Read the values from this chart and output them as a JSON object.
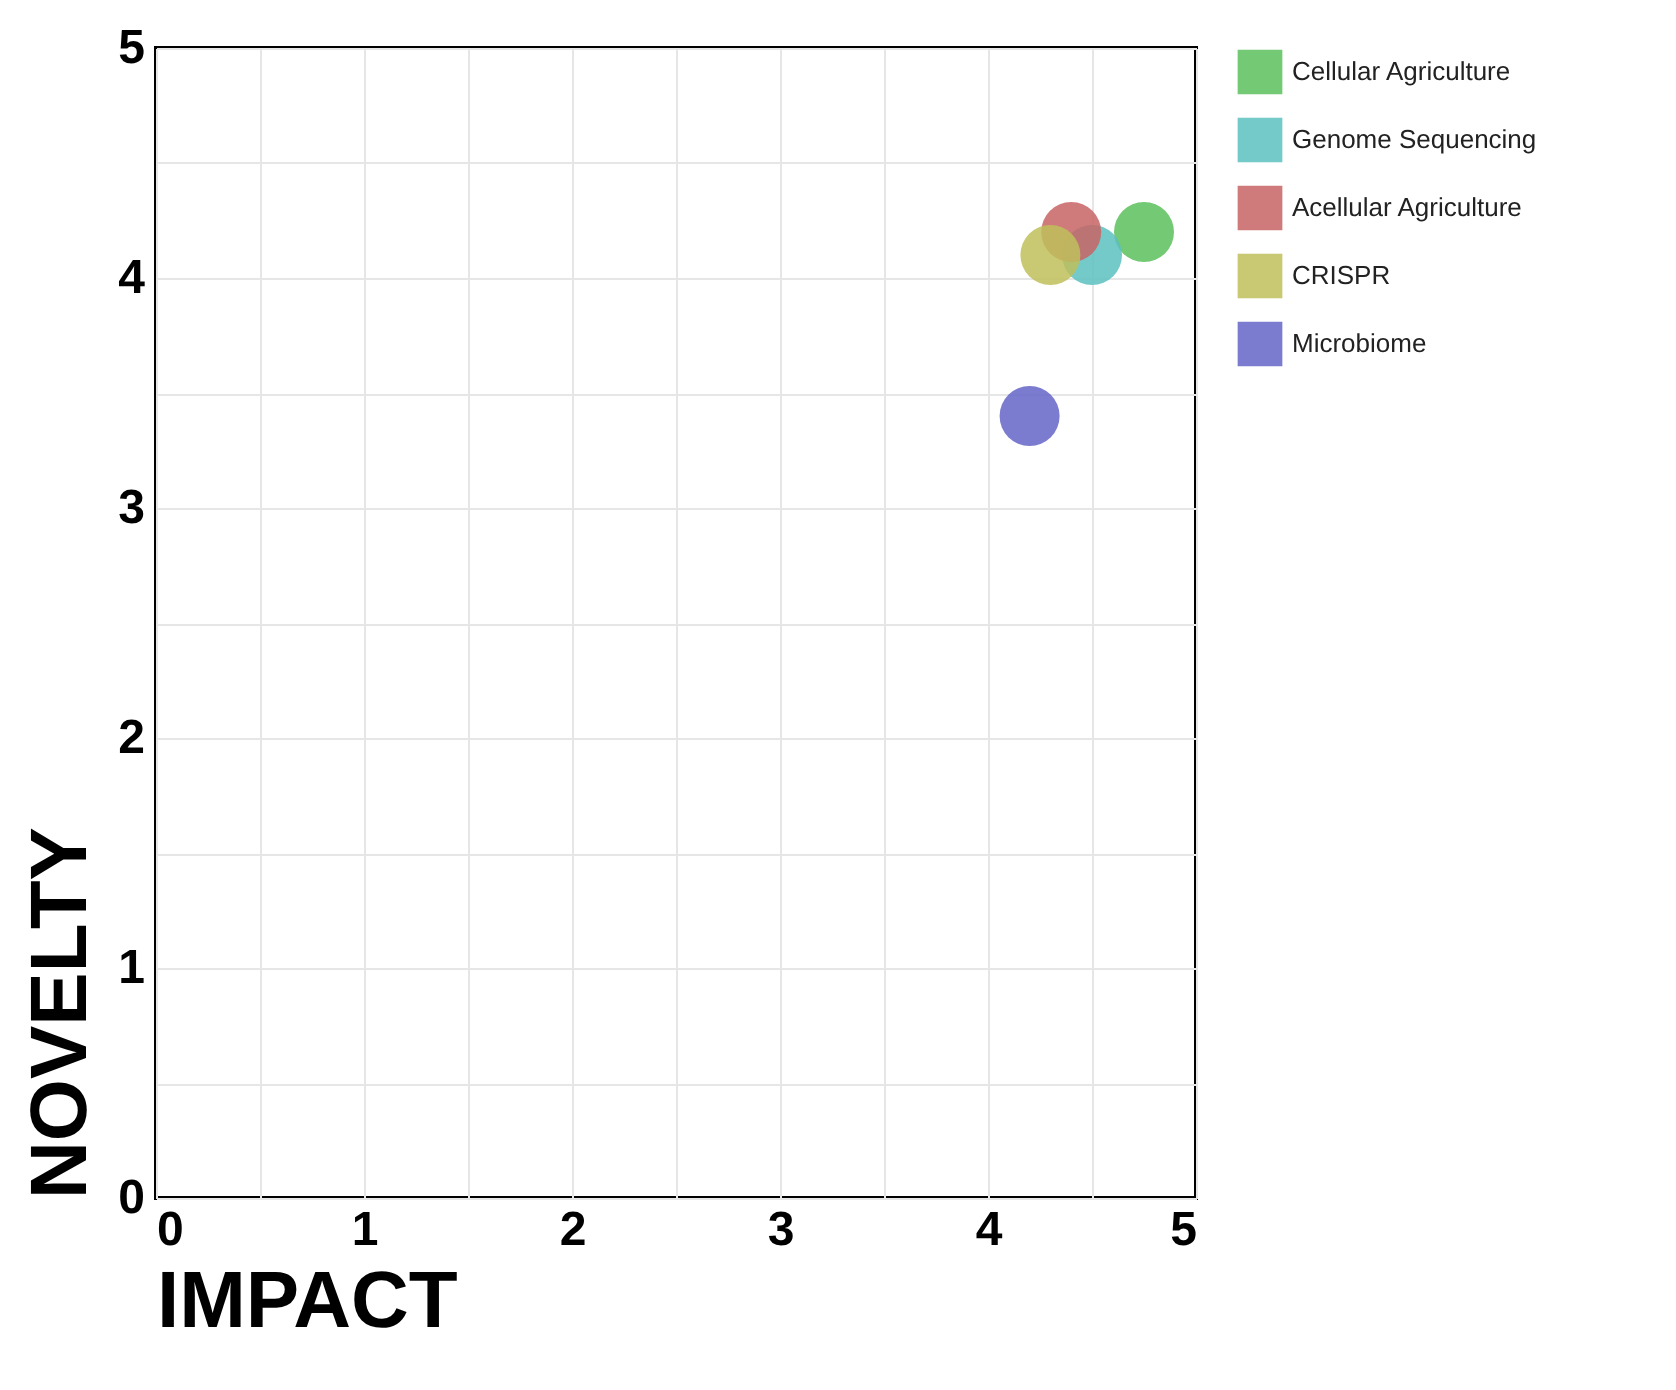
{
  "chart_data": {
    "type": "scatter",
    "xlabel": "IMPACT",
    "ylabel": "NOVELTY",
    "xlim": [
      0,
      5
    ],
    "ylim": [
      0,
      5
    ],
    "xticks": [
      0,
      {
        "value": 0.5,
        "label": null
      },
      1,
      {
        "value": 1.5,
        "label": null
      },
      2,
      {
        "value": 2.5,
        "label": null
      },
      3,
      {
        "value": 3.5,
        "label": null
      },
      4,
      {
        "value": 4.5,
        "label": null
      },
      5
    ],
    "yticks": [
      0,
      {
        "value": 0.5,
        "label": null
      },
      1,
      {
        "value": 1.5,
        "label": null
      },
      2,
      {
        "value": 2.5,
        "label": null
      },
      3,
      {
        "value": 3.5,
        "label": null
      },
      4,
      {
        "value": 4.5,
        "label": null
      },
      5
    ],
    "grid": true,
    "legend": "top right",
    "marker": "circle",
    "series": [
      {
        "name": "Cellular Agriculture",
        "color": "#5cbf5c",
        "x": [
          4.75
        ],
        "values": [
          4.2
        ]
      },
      {
        "name": "Genome Sequencing",
        "color": "#5cbfbf",
        "x": [
          4.5
        ],
        "values": [
          4.1
        ]
      },
      {
        "name": "Acellular Agriculture",
        "color": "#c86464",
        "x": [
          4.4
        ],
        "values": [
          4.2
        ]
      },
      {
        "name": "CRISPR",
        "color": "#bfbf5c",
        "x": [
          4.3
        ],
        "values": [
          4.1
        ]
      },
      {
        "name": "Microbiome",
        "color": "#6464c8",
        "x": [
          4.2
        ],
        "values": [
          3.4
        ]
      }
    ]
  }
}
